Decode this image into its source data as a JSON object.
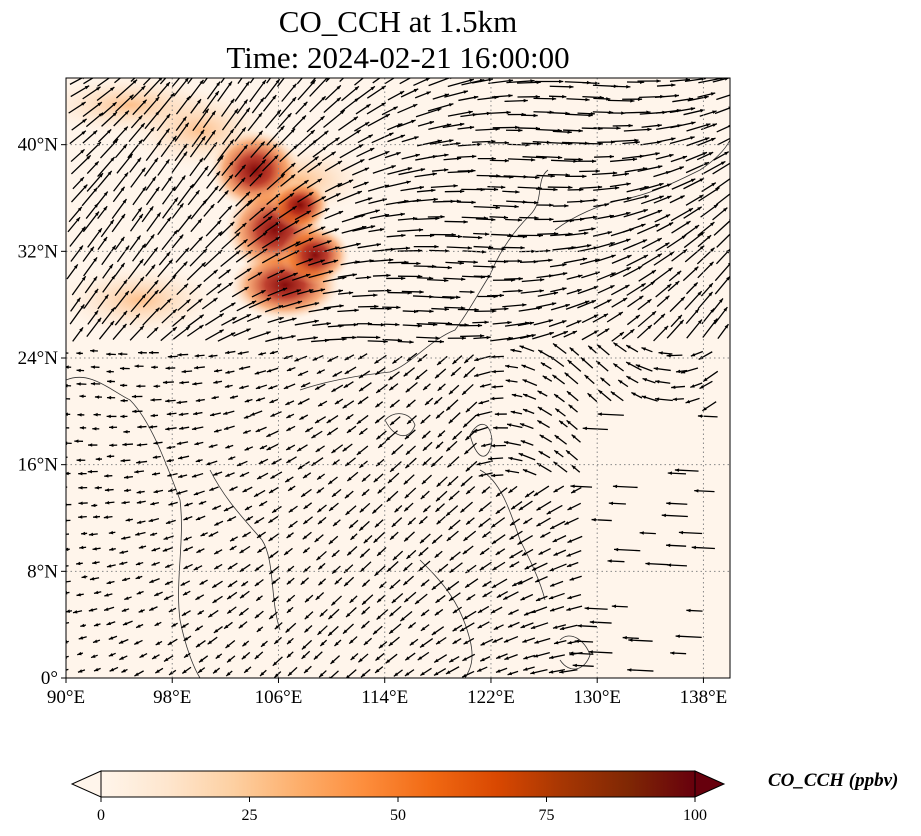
{
  "title": "CO_CCH at 1.5km",
  "subtitle": "Time: 2024-02-21 16:00:00",
  "map": {
    "extent": {
      "lon_min": 90,
      "lon_max": 140,
      "lat_min": 0,
      "lat_max": 45
    },
    "lon_ticks": [
      {
        "value": 90,
        "label": "90°E"
      },
      {
        "value": 98,
        "label": "98°E"
      },
      {
        "value": 106,
        "label": "106°E"
      },
      {
        "value": 114,
        "label": "114°E"
      },
      {
        "value": 122,
        "label": "122°E"
      },
      {
        "value": 130,
        "label": "130°E"
      },
      {
        "value": 138,
        "label": "138°E"
      }
    ],
    "lat_ticks": [
      {
        "value": 0,
        "label": "0°"
      },
      {
        "value": 8,
        "label": "8°N"
      },
      {
        "value": 16,
        "label": "16°N"
      },
      {
        "value": 24,
        "label": "24°N"
      },
      {
        "value": 32,
        "label": "32°N"
      },
      {
        "value": 40,
        "label": "40°N"
      }
    ],
    "gridlines": true,
    "plume_colors": [
      "#fff5eb",
      "#fdd0a2",
      "#fd8d3c",
      "#d94801",
      "#a50f15",
      "#7f0000"
    ]
  },
  "colorbar": {
    "label": "CO_CCH (ppbv)",
    "min": 0,
    "max": 100,
    "ticks": [
      {
        "value": 0,
        "label": "0"
      },
      {
        "value": 25,
        "label": "25"
      },
      {
        "value": 50,
        "label": "50"
      },
      {
        "value": 75,
        "label": "75"
      },
      {
        "value": 100,
        "label": "100"
      }
    ],
    "stops": [
      "#fff5eb",
      "#fee6ce",
      "#fdd0a2",
      "#fdae6b",
      "#fd8d3c",
      "#f16913",
      "#d94801",
      "#a63603",
      "#7f2704",
      "#67000d"
    ]
  }
}
